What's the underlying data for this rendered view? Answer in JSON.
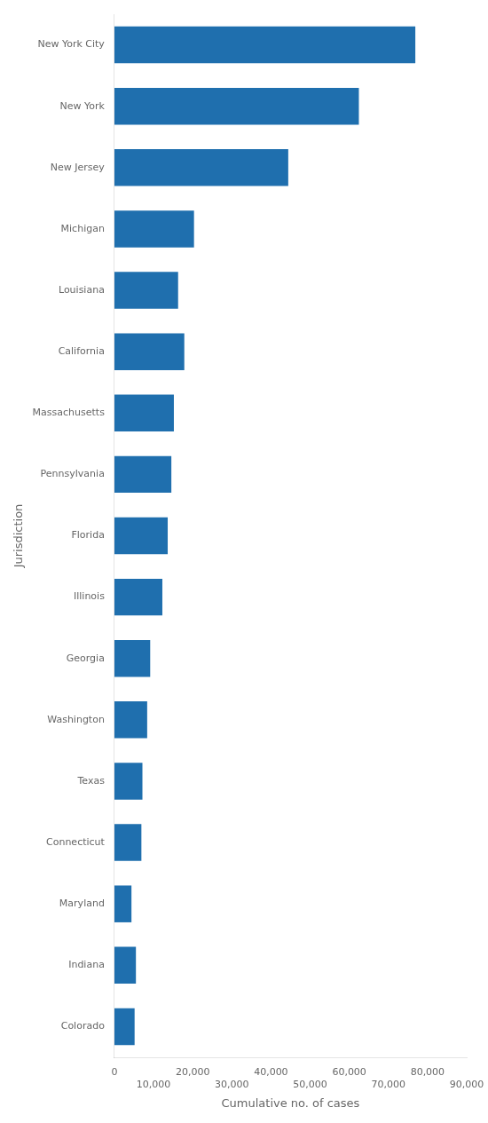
{
  "chart_data": {
    "type": "bar",
    "orientation": "horizontal",
    "categories": [
      "New York City",
      "New York",
      "New Jersey",
      "Michigan",
      "Louisiana",
      "California",
      "Massachusetts",
      "Pennsylvania",
      "Florida",
      "Illinois",
      "Georgia",
      "Washington",
      "Texas",
      "Connecticut",
      "Maryland",
      "Indiana",
      "Colorado"
    ],
    "values": [
      76876,
      62457,
      44416,
      20346,
      16284,
      17865,
      15202,
      14559,
      13629,
      12262,
      9156,
      8384,
      7170,
      6906,
      4371,
      5507,
      5172
    ],
    "color": "#1f6fae",
    "xlabel": "Cumulative no. of cases",
    "ylabel": "Jurisdiction",
    "xlim": [
      0,
      90000
    ],
    "xticks": [
      0,
      {
        "value": 10000,
        "label": "10,000"
      },
      {
        "value": 20000,
        "label": "20,000"
      },
      {
        "value": 30000,
        "label": "30,000"
      },
      {
        "value": 40000,
        "label": "40,000"
      },
      {
        "value": 50000,
        "label": "50,000"
      },
      {
        "value": 60000,
        "label": "60,000"
      },
      {
        "value": 70000,
        "label": "70,000"
      },
      {
        "value": 80000,
        "label": "80,000"
      },
      {
        "value": 90000,
        "label": "90,000"
      }
    ],
    "grid": false
  }
}
